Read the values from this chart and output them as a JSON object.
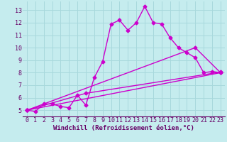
{
  "xlabel": "Windchill (Refroidissement éolien,°C)",
  "bg_color": "#c5ecee",
  "grid_color": "#a8d8dc",
  "line_color": "#cc00cc",
  "xlim": [
    -0.5,
    23.5
  ],
  "ylim": [
    4.5,
    13.7
  ],
  "xticks": [
    0,
    1,
    2,
    3,
    4,
    5,
    6,
    7,
    8,
    9,
    10,
    11,
    12,
    13,
    14,
    15,
    16,
    17,
    18,
    19,
    20,
    21,
    22,
    23
  ],
  "yticks": [
    5,
    6,
    7,
    8,
    9,
    10,
    11,
    12,
    13
  ],
  "line1_x": [
    0,
    1,
    2,
    3,
    4,
    5,
    6,
    7,
    8,
    9,
    10,
    11,
    12,
    13,
    14,
    15,
    16,
    17,
    18,
    19,
    20,
    21,
    22,
    23
  ],
  "line1_y": [
    5.0,
    4.9,
    5.5,
    5.5,
    5.3,
    5.2,
    6.2,
    5.4,
    7.6,
    8.9,
    11.9,
    12.2,
    11.4,
    12.0,
    13.3,
    12.0,
    11.9,
    10.8,
    10.0,
    9.6,
    9.2,
    8.0,
    8.1,
    8.0
  ],
  "line2_x": [
    0,
    23
  ],
  "line2_y": [
    5.0,
    8.0
  ],
  "line3_x": [
    0,
    7,
    23
  ],
  "line3_y": [
    5.0,
    6.35,
    8.05
  ],
  "line4_x": [
    0,
    20,
    23
  ],
  "line4_y": [
    5.0,
    10.0,
    8.0
  ],
  "marker": "D",
  "markersize": 2.5,
  "linewidth": 1.0,
  "label_fontsize": 6.5,
  "tick_fontsize": 6.0
}
